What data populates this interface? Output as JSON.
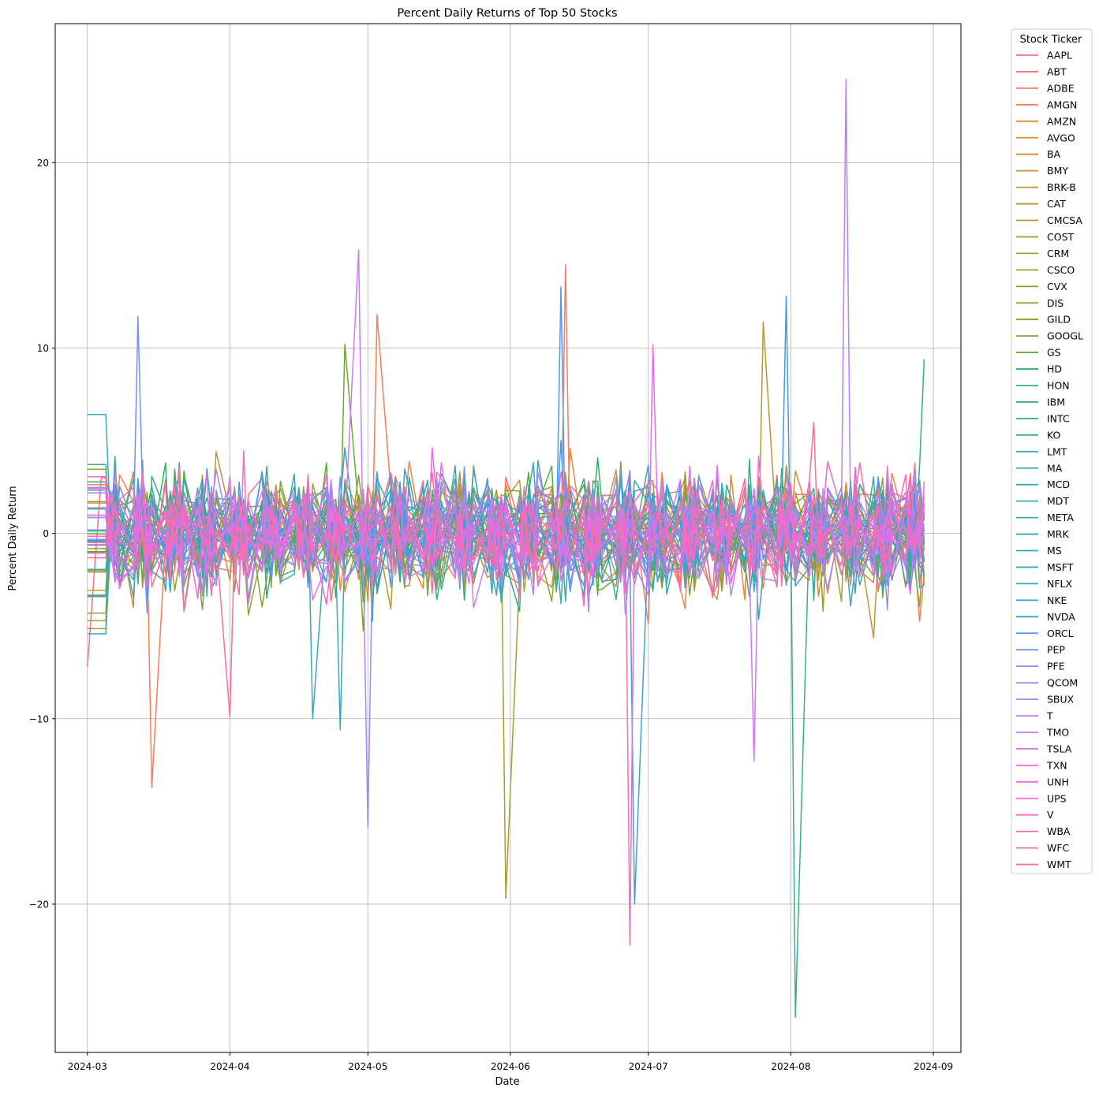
{
  "chart_data": {
    "type": "line",
    "title": "Percent Daily Returns of Top 50 Stocks",
    "xlabel": "Date",
    "ylabel": "Percent Daily Return",
    "xlim": [
      "2024-02-23",
      "2024-09-07"
    ],
    "ylim": [
      -28,
      27.5
    ],
    "x_ticks": [
      {
        "date": "2024-03-01",
        "label": "2024-03"
      },
      {
        "date": "2024-04-01",
        "label": "2024-04"
      },
      {
        "date": "2024-05-01",
        "label": "2024-05"
      },
      {
        "date": "2024-06-01",
        "label": "2024-06"
      },
      {
        "date": "2024-07-01",
        "label": "2024-07"
      },
      {
        "date": "2024-08-01",
        "label": "2024-08"
      },
      {
        "date": "2024-09-01",
        "label": "2024-09"
      }
    ],
    "y_ticks": [
      {
        "value": -20,
        "label": "−20"
      },
      {
        "value": -10,
        "label": "−10"
      },
      {
        "value": 0,
        "label": "0"
      },
      {
        "value": 10,
        "label": "10"
      },
      {
        "value": 20,
        "label": "20"
      }
    ],
    "grid": true,
    "legend": {
      "title": "Stock Ticker",
      "position": "outside-right"
    },
    "series": [
      {
        "name": "AAPL",
        "color": "#f77189"
      },
      {
        "name": "ABT",
        "color": "#f7757a"
      },
      {
        "name": "ADBE",
        "color": "#f77a6a"
      },
      {
        "name": "AMGN",
        "color": "#f47f53"
      },
      {
        "name": "AMZN",
        "color": "#e88632"
      },
      {
        "name": "AVGO",
        "color": "#dd8a32"
      },
      {
        "name": "BA",
        "color": "#d38d32"
      },
      {
        "name": "BMY",
        "color": "#ca9032"
      },
      {
        "name": "BRK-B",
        "color": "#c29332"
      },
      {
        "name": "CAT",
        "color": "#bb9532"
      },
      {
        "name": "CMCSA",
        "color": "#b49732"
      },
      {
        "name": "COST",
        "color": "#ad9a32"
      },
      {
        "name": "CRM",
        "color": "#a69c31"
      },
      {
        "name": "CSCO",
        "color": "#9e9e31"
      },
      {
        "name": "CVX",
        "color": "#96a031"
      },
      {
        "name": "DIS",
        "color": "#8ca231"
      },
      {
        "name": "GILD",
        "color": "#7fa531"
      },
      {
        "name": "GOOGL",
        "color": "#6ea831"
      },
      {
        "name": "GS",
        "color": "#50b131"
      },
      {
        "name": "HD",
        "color": "#32b164"
      },
      {
        "name": "HON",
        "color": "#33b07a"
      },
      {
        "name": "IBM",
        "color": "#34ae88"
      },
      {
        "name": "INTC",
        "color": "#35ad92"
      },
      {
        "name": "KO",
        "color": "#35ac9a"
      },
      {
        "name": "LMT",
        "color": "#36aba1"
      },
      {
        "name": "MA",
        "color": "#36aaa7"
      },
      {
        "name": "MCD",
        "color": "#37a9ac"
      },
      {
        "name": "MDT",
        "color": "#38a8b1"
      },
      {
        "name": "META",
        "color": "#38a7b6"
      },
      {
        "name": "MRK",
        "color": "#39a6bb"
      },
      {
        "name": "MS",
        "color": "#3aa5c0"
      },
      {
        "name": "MSFT",
        "color": "#3ba3c6"
      },
      {
        "name": "NFLX",
        "color": "#3ca1cd"
      },
      {
        "name": "NKE",
        "color": "#3d9fd5"
      },
      {
        "name": "NVDA",
        "color": "#3f9ce1"
      },
      {
        "name": "ORCL",
        "color": "#5198f4"
      },
      {
        "name": "PEP",
        "color": "#6e93f4"
      },
      {
        "name": "PFE",
        "color": "#878ff4"
      },
      {
        "name": "QCOM",
        "color": "#9b8af4"
      },
      {
        "name": "SBUX",
        "color": "#ad85f4"
      },
      {
        "name": "T",
        "color": "#be7ff4"
      },
      {
        "name": "TMO",
        "color": "#d079f4"
      },
      {
        "name": "TSLA",
        "color": "#e16ff4"
      },
      {
        "name": "TXN",
        "color": "#f365ef"
      },
      {
        "name": "UNH",
        "color": "#f466de"
      },
      {
        "name": "UPS",
        "color": "#f569d0"
      },
      {
        "name": "V",
        "color": "#f56bc3"
      },
      {
        "name": "WBA",
        "color": "#f66db6"
      },
      {
        "name": "WFC",
        "color": "#f66faa"
      },
      {
        "name": "WMT",
        "color": "#f6709c"
      }
    ],
    "notable_points": [
      {
        "series": "T",
        "date": "2024-08-13",
        "value": 24.5
      },
      {
        "series": "TMO",
        "date": "2024-04-29",
        "value": 15.3
      },
      {
        "series": "ADBE",
        "date": "2024-06-13",
        "value": 14.5
      },
      {
        "series": "AMGN",
        "date": "2024-05-03",
        "value": 11.8
      },
      {
        "series": "ORCL",
        "date": "2024-06-12",
        "value": 13.3
      },
      {
        "series": "NVDA",
        "date": "2024-07-31",
        "value": 12.8
      },
      {
        "series": "CAT",
        "date": "2024-07-26",
        "value": 11.4
      },
      {
        "series": "PEP",
        "date": "2024-03-12",
        "value": 11.7
      },
      {
        "series": "TSLA",
        "date": "2024-07-02",
        "value": 10.2
      },
      {
        "series": "GOOGL",
        "date": "2024-04-26",
        "value": 10.2
      },
      {
        "series": "HON",
        "date": "2024-08-30",
        "value": 9.4
      },
      {
        "series": "NKE",
        "date": "2024-06-28",
        "value": -20.0
      },
      {
        "series": "WBA",
        "date": "2024-06-27",
        "value": -22.2
      },
      {
        "series": "CRM",
        "date": "2024-05-31",
        "value": -19.7
      },
      {
        "series": "INTC",
        "date": "2024-08-02",
        "value": -26.1
      },
      {
        "series": "SBUX",
        "date": "2024-05-01",
        "value": -15.9
      },
      {
        "series": "AMGN",
        "date": "2024-03-15",
        "value": -13.7
      },
      {
        "series": "MRK",
        "date": "2024-04-25",
        "value": -10.6
      },
      {
        "series": "TMO",
        "date": "2024-07-24",
        "value": -12.3
      },
      {
        "series": "MS",
        "date": "2024-04-19",
        "value": -10.0
      },
      {
        "series": "WMT",
        "date": "2024-04-01",
        "value": -9.9
      },
      {
        "series": "AAPL",
        "date": "2024-03-01",
        "value": -7.2
      }
    ]
  }
}
